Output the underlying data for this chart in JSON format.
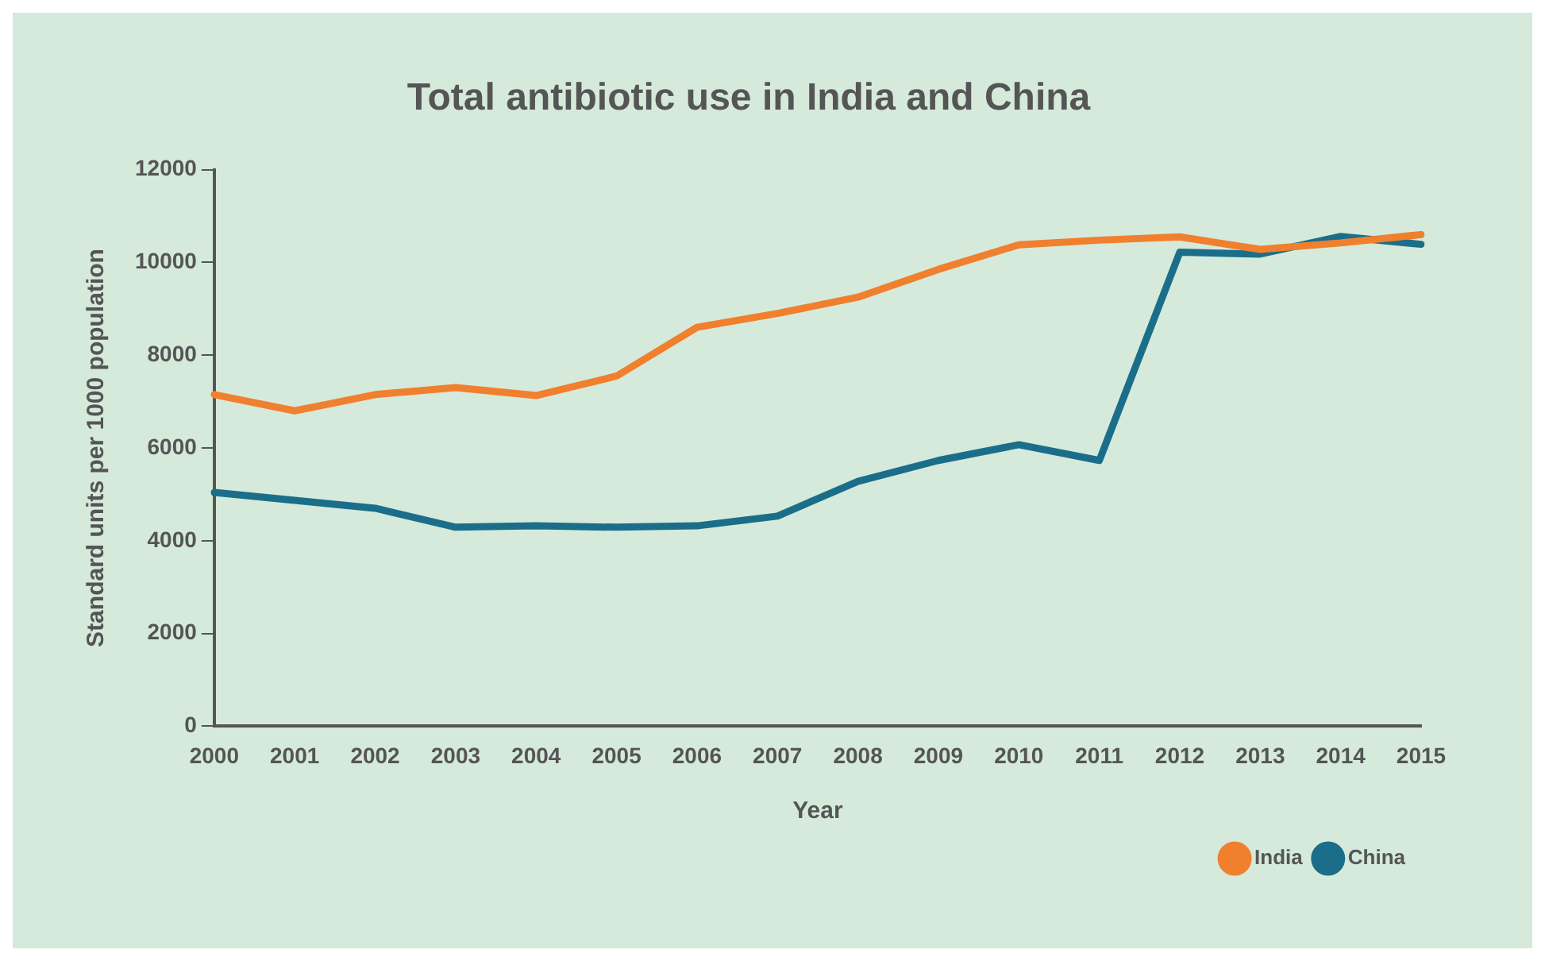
{
  "chart_data": {
    "type": "line",
    "title": "Total antibiotic use in India and China",
    "xlabel": "Year",
    "ylabel": "Standard units per 1000 population",
    "categories": [
      "2000",
      "2001",
      "2002",
      "2003",
      "2004",
      "2005",
      "2006",
      "2007",
      "2008",
      "2009",
      "2010",
      "2011",
      "2012",
      "2013",
      "2014",
      "2015"
    ],
    "series": [
      {
        "name": "India",
        "color": "#f07f2e",
        "values": [
          7150,
          6800,
          7150,
          7300,
          7130,
          7550,
          8600,
          8900,
          9250,
          9850,
          10380,
          10480,
          10550,
          10280,
          10420,
          10600
        ]
      },
      {
        "name": "China",
        "color": "#1b6e8a",
        "values": [
          5040,
          4870,
          4700,
          4290,
          4320,
          4290,
          4320,
          4530,
          5280,
          5730,
          6070,
          5730,
          10220,
          10180,
          10560,
          10390
        ]
      }
    ],
    "ylim": [
      0,
      12000
    ],
    "yticks": [
      0,
      2000,
      4000,
      6000,
      8000,
      10000,
      12000
    ],
    "grid": false,
    "legend": "bottom right",
    "marker": "none",
    "line_style": "solid"
  }
}
